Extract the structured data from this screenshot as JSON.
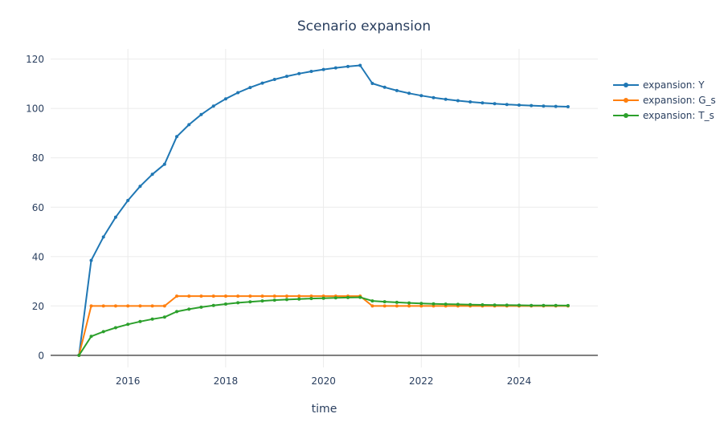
{
  "chart_data": {
    "type": "line",
    "mode": "lines+markers",
    "title": "Scenario expansion",
    "xlabel": "time",
    "ylabel": "",
    "grid": true,
    "legend_position": "right",
    "xlim": [
      2014.42,
      2025.61
    ],
    "ylim": [
      -4.9,
      124.1
    ],
    "xticks": [
      2016,
      2018,
      2020,
      2022,
      2024
    ],
    "xtick_labels": [
      "2016",
      "2018",
      "2020",
      "2022",
      "2024"
    ],
    "yticks": [
      0,
      20,
      40,
      60,
      80,
      100,
      120
    ],
    "ytick_labels": [
      "0",
      "20",
      "40",
      "60",
      "80",
      "100",
      "120"
    ],
    "x": [
      2015,
      2015.25,
      2015.5,
      2015.75,
      2016,
      2016.25,
      2016.5,
      2016.75,
      2017,
      2017.25,
      2017.5,
      2017.75,
      2018,
      2018.25,
      2018.5,
      2018.75,
      2019,
      2019.25,
      2019.5,
      2019.75,
      2020,
      2020.25,
      2020.5,
      2020.75,
      2021,
      2021.25,
      2021.5,
      2021.75,
      2022,
      2022.25,
      2022.5,
      2022.75,
      2023,
      2023.25,
      2023.5,
      2023.75,
      2024,
      2024.25,
      2024.5,
      2024.75,
      2025
    ],
    "series": [
      {
        "name": "expansion: Y",
        "color": "#1f77b4",
        "values": [
          0,
          38.46,
          47.93,
          55.94,
          62.71,
          68.46,
          73.31,
          77.42,
          88.58,
          93.42,
          97.51,
          100.97,
          103.9,
          106.38,
          108.47,
          110.25,
          111.75,
          113.02,
          114.1,
          115.0,
          115.77,
          116.42,
          116.98,
          117.44,
          110.14,
          108.58,
          107.25,
          106.14,
          105.19,
          104.39,
          103.71,
          103.15,
          102.66,
          102.25,
          101.91,
          101.61,
          101.37,
          101.16,
          100.98,
          100.83,
          100.7
        ]
      },
      {
        "name": "expansion: G_s",
        "color": "#ff7f0e",
        "values": [
          0,
          20,
          20,
          20,
          20,
          20,
          20,
          20,
          24,
          24,
          24,
          24,
          24,
          24,
          24,
          24,
          24,
          24,
          24,
          24,
          24,
          24,
          24,
          24,
          20,
          20,
          20,
          20,
          20,
          20,
          20,
          20,
          20,
          20,
          20,
          20,
          20,
          20,
          20,
          20,
          20
        ]
      },
      {
        "name": "expansion: T_s",
        "color": "#2ca02c",
        "values": [
          0,
          7.69,
          9.59,
          11.19,
          12.54,
          13.69,
          14.66,
          15.48,
          17.72,
          18.68,
          19.5,
          20.19,
          20.78,
          21.28,
          21.69,
          22.05,
          22.35,
          22.6,
          22.82,
          23.0,
          23.15,
          23.28,
          23.4,
          23.49,
          22.03,
          21.72,
          21.45,
          21.23,
          21.04,
          20.88,
          20.74,
          20.63,
          20.53,
          20.45,
          20.38,
          20.32,
          20.27,
          20.23,
          20.2,
          20.17,
          20.14
        ]
      }
    ],
    "style": {
      "background_color": "#ffffff",
      "grid_color": "#ebebeb",
      "zero_line_color": "#444444",
      "text_color": "#2a3f5f",
      "line_width": 2,
      "marker_radius": 2
    }
  }
}
